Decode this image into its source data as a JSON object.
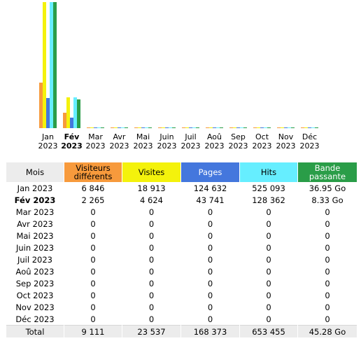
{
  "chart_data": {
    "type": "bar",
    "categories": [
      {
        "month": "Jan",
        "year": "2023"
      },
      {
        "month": "Fév",
        "year": "2023"
      },
      {
        "month": "Mar",
        "year": "2023"
      },
      {
        "month": "Avr",
        "year": "2023"
      },
      {
        "month": "Mai",
        "year": "2023"
      },
      {
        "month": "Juin",
        "year": "2023"
      },
      {
        "month": "Juil",
        "year": "2023"
      },
      {
        "month": "Aoû",
        "year": "2023"
      },
      {
        "month": "Sep",
        "year": "2023"
      },
      {
        "month": "Oct",
        "year": "2023"
      },
      {
        "month": "Nov",
        "year": "2023"
      },
      {
        "month": "Déc",
        "year": "2023"
      }
    ],
    "current_index": 1,
    "series": [
      {
        "key": "visitors",
        "values": [
          6846,
          2265,
          0,
          0,
          0,
          0,
          0,
          0,
          0,
          0,
          0,
          0
        ],
        "color": "#f79a3c",
        "scale": "visits"
      },
      {
        "key": "visits",
        "values": [
          18913,
          4624,
          0,
          0,
          0,
          0,
          0,
          0,
          0,
          0,
          0,
          0
        ],
        "color": "#f4f20c",
        "scale": "visits"
      },
      {
        "key": "pages",
        "values": [
          124632,
          43741,
          0,
          0,
          0,
          0,
          0,
          0,
          0,
          0,
          0,
          0
        ],
        "color": "#4477dd",
        "scale": "hits"
      },
      {
        "key": "hits",
        "values": [
          525093,
          128362,
          0,
          0,
          0,
          0,
          0,
          0,
          0,
          0,
          0,
          0
        ],
        "color": "#66eeff",
        "scale": "hits"
      },
      {
        "key": "bandwidth",
        "values": [
          36.95,
          8.33,
          0,
          0,
          0,
          0,
          0,
          0,
          0,
          0,
          0,
          0
        ],
        "color": "#2a9d48",
        "scale": "bandwidth"
      }
    ],
    "scale_max": {
      "visits": 18913,
      "hits": 525093,
      "bandwidth": 36.95
    }
  },
  "table": {
    "headers": {
      "month": "Mois",
      "visitors": "Visiteurs différents",
      "visits": "Visites",
      "pages": "Pages",
      "hits": "Hits",
      "bandwidth": "Bande passante"
    },
    "rows": [
      {
        "month": "Jan 2023",
        "visitors": "6 846",
        "visits": "18 913",
        "pages": "124 632",
        "hits": "525 093",
        "bandwidth": "36.95 Go"
      },
      {
        "month": "Fév 2023",
        "visitors": "2 265",
        "visits": "4 624",
        "pages": "43 741",
        "hits": "128 362",
        "bandwidth": "8.33 Go"
      },
      {
        "month": "Mar 2023",
        "visitors": "0",
        "visits": "0",
        "pages": "0",
        "hits": "0",
        "bandwidth": "0"
      },
      {
        "month": "Avr 2023",
        "visitors": "0",
        "visits": "0",
        "pages": "0",
        "hits": "0",
        "bandwidth": "0"
      },
      {
        "month": "Mai 2023",
        "visitors": "0",
        "visits": "0",
        "pages": "0",
        "hits": "0",
        "bandwidth": "0"
      },
      {
        "month": "Juin 2023",
        "visitors": "0",
        "visits": "0",
        "pages": "0",
        "hits": "0",
        "bandwidth": "0"
      },
      {
        "month": "Juil 2023",
        "visitors": "0",
        "visits": "0",
        "pages": "0",
        "hits": "0",
        "bandwidth": "0"
      },
      {
        "month": "Aoû 2023",
        "visitors": "0",
        "visits": "0",
        "pages": "0",
        "hits": "0",
        "bandwidth": "0"
      },
      {
        "month": "Sep 2023",
        "visitors": "0",
        "visits": "0",
        "pages": "0",
        "hits": "0",
        "bandwidth": "0"
      },
      {
        "month": "Oct 2023",
        "visitors": "0",
        "visits": "0",
        "pages": "0",
        "hits": "0",
        "bandwidth": "0"
      },
      {
        "month": "Nov 2023",
        "visitors": "0",
        "visits": "0",
        "pages": "0",
        "hits": "0",
        "bandwidth": "0"
      },
      {
        "month": "Déc 2023",
        "visitors": "0",
        "visits": "0",
        "pages": "0",
        "hits": "0",
        "bandwidth": "0"
      }
    ],
    "total": {
      "month": "Total",
      "visitors": "9 111",
      "visits": "23 537",
      "pages": "168 373",
      "hits": "653 455",
      "bandwidth": "45.28 Go"
    }
  }
}
